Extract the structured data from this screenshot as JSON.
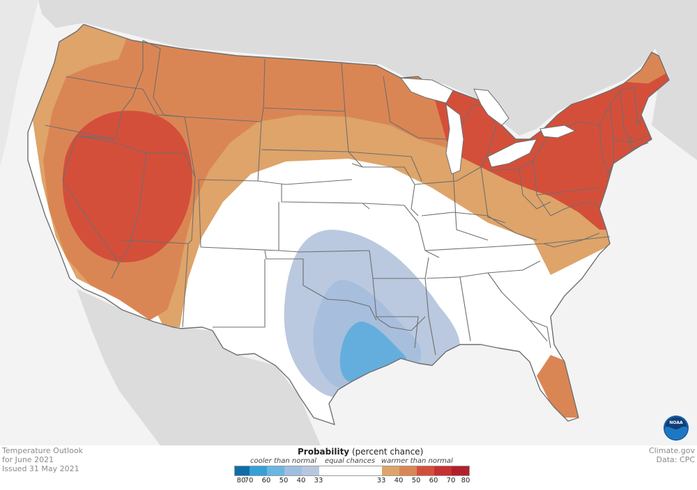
{
  "map": {
    "country": "United States",
    "colors": {
      "background": "#ffffff",
      "land_outside": "#dcdcdc",
      "lakes": "#ffffff",
      "state_lines": "#6e6e6e",
      "warm_33_40": "#dea46a",
      "warm_40_50": "#da8654",
      "warm_50_60": "#d44f3a",
      "cool_33_40": "#bac9df",
      "cool_40_50": "#a7bedd",
      "cool_50_60": "#64aedd"
    }
  },
  "info": {
    "title_line1": "Temperature Outlook",
    "title_line2": "for June 2021",
    "issued": "Issued 31 May 2021"
  },
  "credit": {
    "site": "Climate.gov",
    "data": "Data: CPC"
  },
  "legend": {
    "title_bold": "Probability",
    "title_rest": "(percent chance)",
    "cooler_label": "cooler than normal",
    "equal_label": "equal chances",
    "warmer_label": "warmer than normal",
    "tick_labels": [
      "80",
      "70",
      "60",
      "50",
      "40",
      "33",
      "33",
      "40",
      "50",
      "60",
      "70",
      "80"
    ],
    "swatches": [
      "#0f6ea8",
      "#36a0d8",
      "#6ab6e2",
      "#9fbfdf",
      "#b7c7df",
      "#ffffff",
      "#dea46a",
      "#da8654",
      "#d44f3a",
      "#c73132",
      "#b1202c"
    ]
  },
  "logo": {
    "name": "NOAA",
    "text": "NOAA"
  }
}
